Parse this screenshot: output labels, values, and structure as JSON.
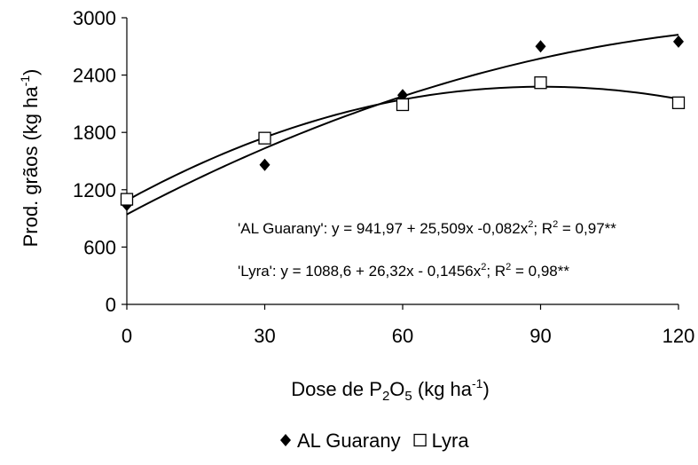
{
  "chart_data": {
    "type": "scatter",
    "x_label": [
      "Dose de P",
      "2",
      "O",
      "5",
      " (kg ha",
      "-1",
      ")"
    ],
    "y_label": [
      "Prod. grãos (kg ha",
      "-1",
      ")"
    ],
    "annotations": [
      [
        "'AL Guarany': y = 941,97 + 25,509x -0,082x",
        "2",
        "; R",
        "2",
        " = 0,97**"
      ],
      [
        "'Lyra': y = 1088,6 + 26,32x - 0,1456x",
        "2",
        "; R",
        "2",
        " = 0,98**"
      ]
    ],
    "x": [
      0,
      30,
      60,
      90,
      120
    ],
    "series": [
      {
        "name": "AL Guarany",
        "color": "#000000",
        "marker": "diamond",
        "values": [
          1040,
          1460,
          2190,
          2700,
          2750
        ],
        "fit": [
          941.97,
          25.509,
          -0.082
        ]
      },
      {
        "name": "Lyra",
        "color": "#000000",
        "marker": "square",
        "values": [
          1100,
          1740,
          2090,
          2320,
          2110
        ],
        "fit": [
          1088.6,
          26.32,
          -0.1456
        ]
      }
    ],
    "xlim": [
      0,
      120
    ],
    "xticks": [
      0,
      30,
      60,
      90,
      120
    ],
    "ylim": [
      0,
      3000
    ],
    "yticks": [
      0,
      600,
      1200,
      1800,
      2400,
      3000
    ],
    "grid": false,
    "legend": "bottom"
  }
}
